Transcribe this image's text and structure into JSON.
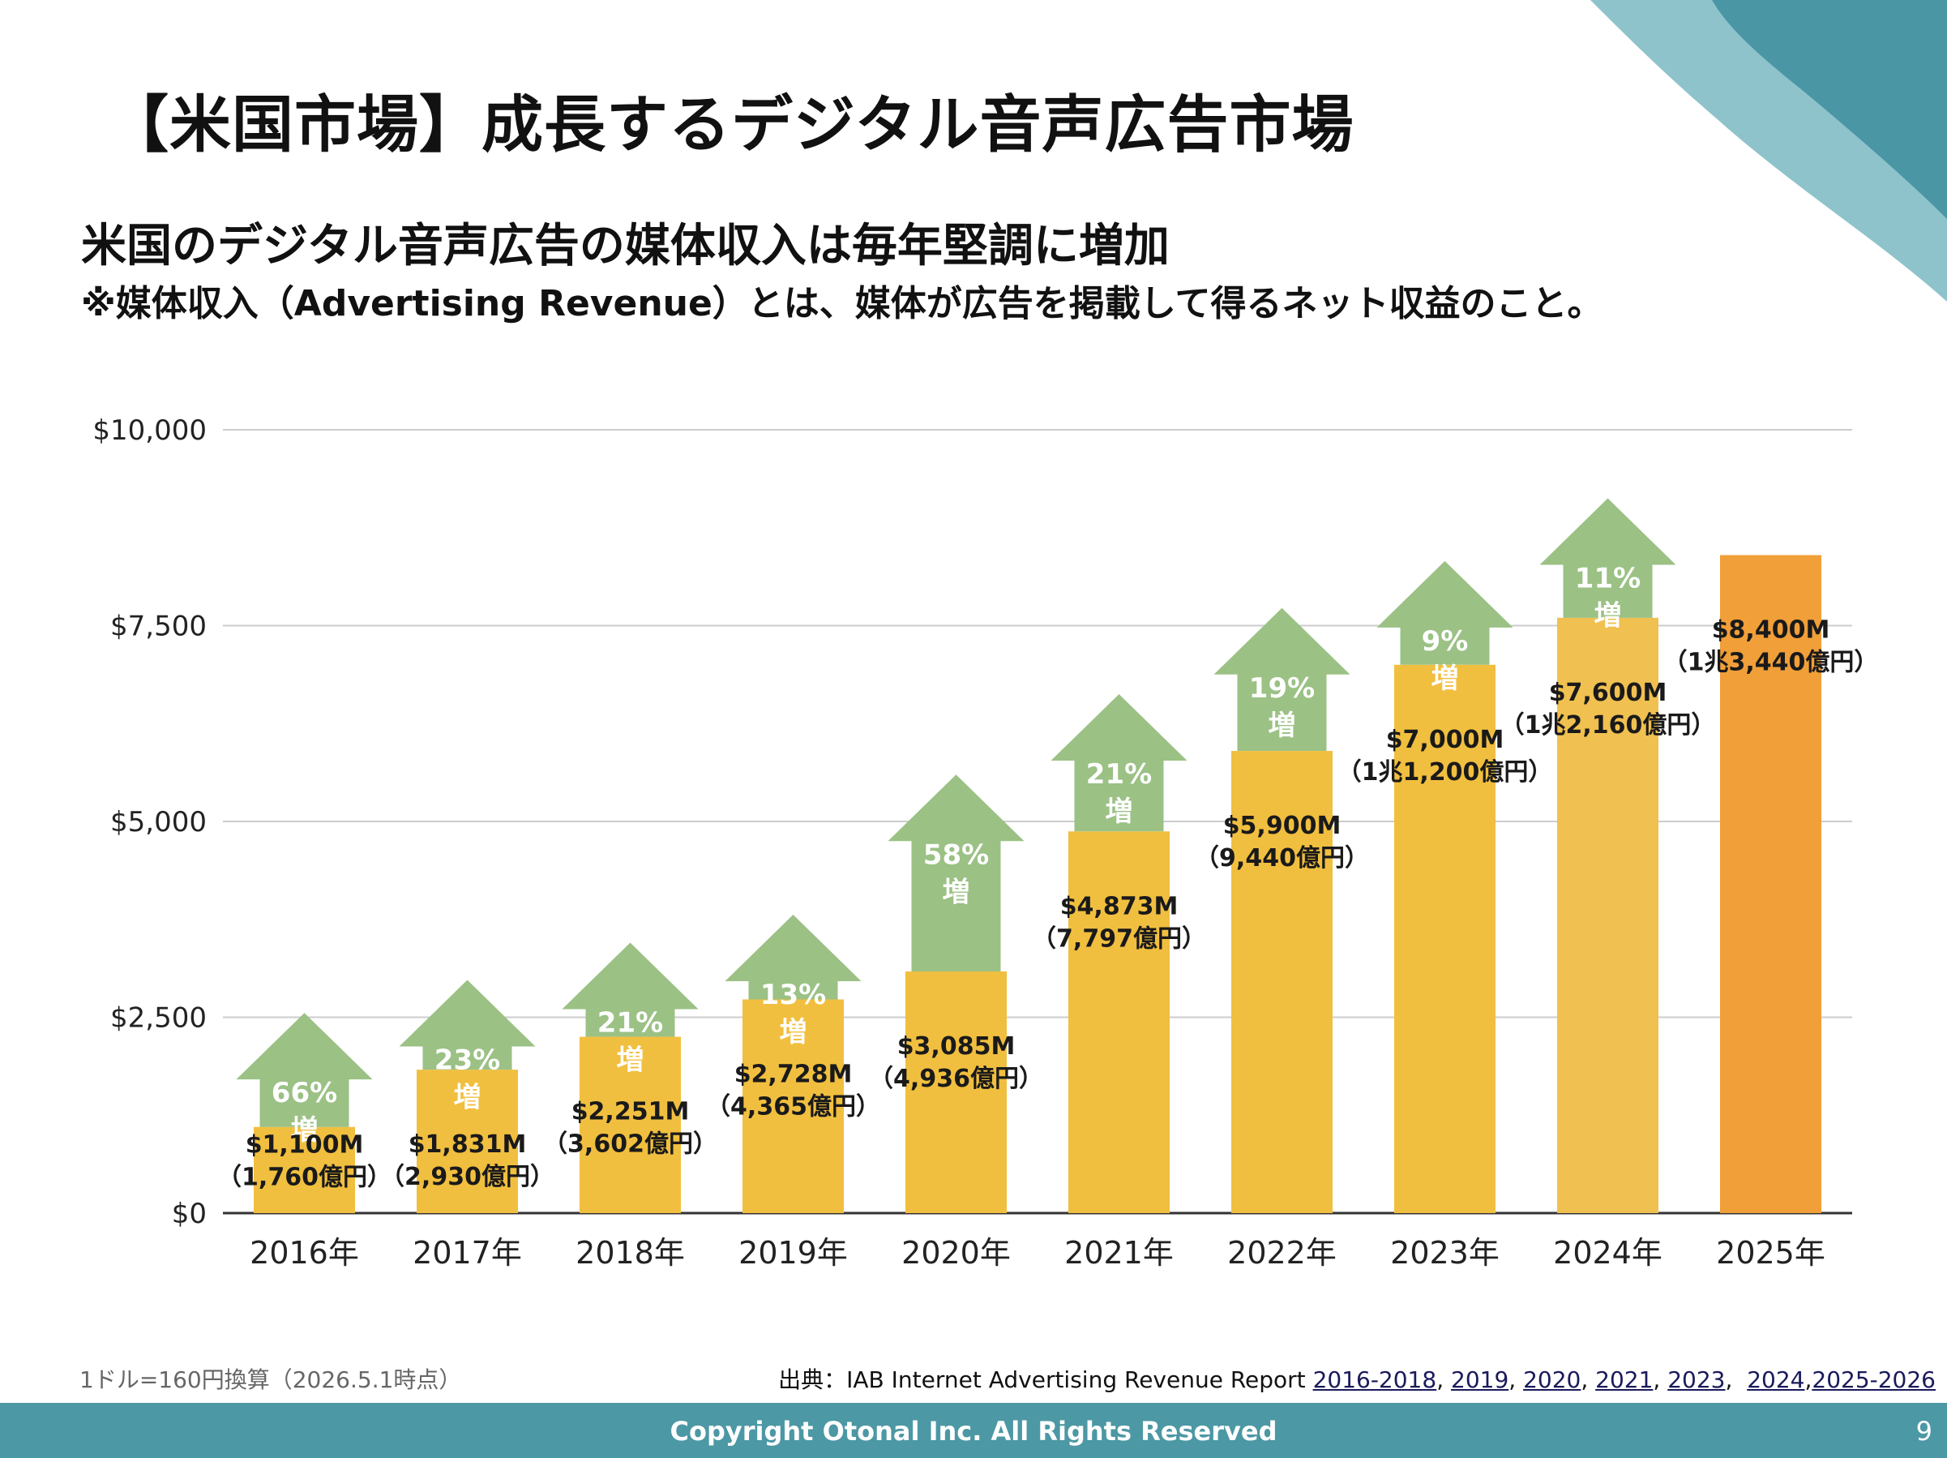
{
  "slide": {
    "title": "【米国市場】成長するデジタル音声広告市場",
    "subtitle": "米国のデジタル音声広告の媒体収入は毎年堅調に増加",
    "note": "※媒体収入（Advertising Revenue）とは、媒体が広告を掲載して得るネット収益のこと。",
    "exchange_note": "1ドル=160円換算（2026.5.1時点）",
    "source": {
      "prefix": "出典：IAB Internet Advertising Revenue Report ",
      "links": [
        "2016-2018",
        "2019",
        "2020",
        "2021",
        "2023",
        "2024",
        "2025-2026"
      ]
    },
    "copyright": "Copyright  Otonal  Inc. All Rights Reserved",
    "page_number": "9"
  },
  "colors": {
    "bar": "#f1bf3f",
    "bar_2024": "#f0c050",
    "bar_2025": "#f19f38",
    "arrow": "#9bc185",
    "grid": "#cccccc",
    "axis": "#333333",
    "footer": "#4c98a4",
    "deco_dark": "#4a96a5",
    "deco_light": "#8fc3cb"
  },
  "chart_data": {
    "type": "bar",
    "categories": [
      "2016年",
      "2017年",
      "2018年",
      "2019年",
      "2020年",
      "2021年",
      "2022年",
      "2023年",
      "2024年",
      "2025年"
    ],
    "values": [
      1100,
      1831,
      2251,
      2728,
      3085,
      4873,
      5900,
      7000,
      7600,
      8400
    ],
    "value_labels": [
      "$1,100M",
      "$1,831M",
      "$2,251M",
      "$2,728M",
      "$3,085M",
      "$4,873M",
      "$5,900M",
      "$7,000M",
      "$7,600M",
      "$8,400M"
    ],
    "yen_labels": [
      "（1,760億円）",
      "（2,930億円）",
      "（3,602億円）",
      "（4,365億円）",
      "（4,936億円）",
      "（7,797億円）",
      "（9,440億円）",
      "（1兆1,200億円）",
      "（1兆2,160億円）",
      "（1兆3,440億円）"
    ],
    "growth_labels": [
      "66%",
      "23%",
      "21%",
      "13%",
      "58%",
      "21%",
      "19%",
      "9%",
      "11%",
      ""
    ],
    "growth_suffix": "増",
    "y_ticks": [
      "$0",
      "$2,500",
      "$5,000",
      "$7,500",
      "$10,000"
    ],
    "y_tick_values": [
      0,
      2500,
      5000,
      7500,
      10000
    ],
    "ylim": [
      0,
      10000
    ],
    "grid": true
  }
}
